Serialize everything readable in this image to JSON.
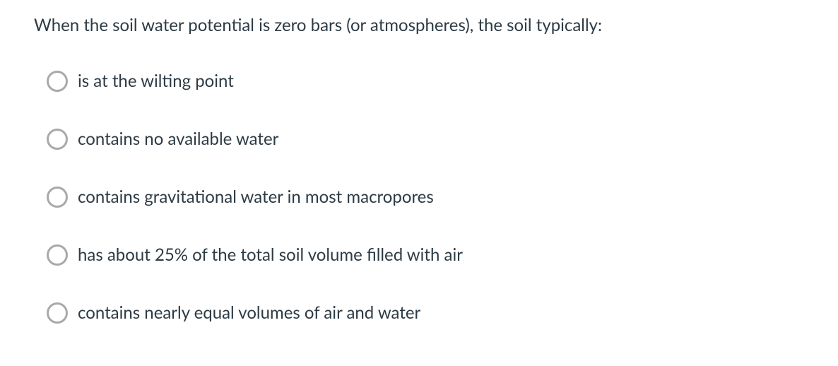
{
  "question": {
    "text": "When the soil water potential is zero bars (or atmospheres), the soil typically:"
  },
  "options": [
    {
      "label": "is at the wilting point"
    },
    {
      "label": "contains no available water"
    },
    {
      "label": "contains gravitational water in most macropores"
    },
    {
      "label": "has about 25% of the total soil volume filled with air"
    },
    {
      "label": "contains nearly equal volumes of air and water"
    }
  ],
  "style": {
    "text_color": "#2d3b45",
    "radio_border_color": "#a7a9ac",
    "background_color": "#ffffff",
    "question_fontsize": 24,
    "option_fontsize": 24
  }
}
